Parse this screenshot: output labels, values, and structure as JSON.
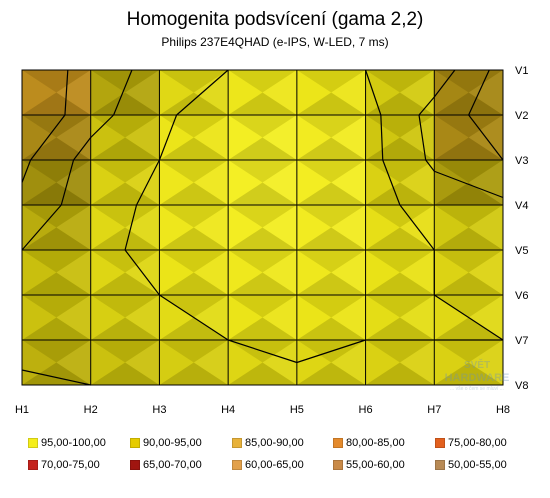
{
  "title": "Homogenita podsvícení (gama 2,2)",
  "subtitle": "Philips 237E4QHAD  (e-IPS, W-LED, 7 ms)",
  "chart_data": {
    "type": "heatmap",
    "x_labels": [
      "H1",
      "H2",
      "H3",
      "H4",
      "H5",
      "H6",
      "H7",
      "H8"
    ],
    "y_labels": [
      "V1",
      "V2",
      "V3",
      "V4",
      "V5",
      "V6",
      "V7",
      "V8"
    ],
    "values": [
      [
        81,
        87,
        92,
        95,
        95,
        95,
        93,
        83
      ],
      [
        80,
        88,
        94,
        98,
        98,
        97,
        88,
        82
      ],
      [
        84,
        92,
        95,
        98,
        99,
        97,
        89,
        85
      ],
      [
        86,
        93,
        96,
        98,
        99,
        97,
        93,
        91
      ],
      [
        90,
        94,
        96,
        97,
        98,
        97,
        95,
        93
      ],
      [
        91,
        93,
        95,
        96,
        97,
        96,
        95,
        94
      ],
      [
        92,
        93,
        94,
        95,
        96,
        95,
        95,
        95
      ],
      [
        89,
        90,
        92,
        93,
        94,
        93,
        93,
        93
      ]
    ],
    "legend": [
      {
        "label": "95,00-100,00",
        "color": "#f5ee1a"
      },
      {
        "label": "90,00-95,00",
        "color": "#e6cc00"
      },
      {
        "label": "85,00-90,00",
        "color": "#e8b23a"
      },
      {
        "label": "80,00-85,00",
        "color": "#e48a2c"
      },
      {
        "label": "75,00-80,00",
        "color": "#e2601e"
      },
      {
        "label": "70,00-75,00",
        "color": "#c4221c"
      },
      {
        "label": "65,00-70,00",
        "color": "#a01510"
      },
      {
        "label": "60,00-65,00",
        "color": "#e2a04a"
      },
      {
        "label": "55,00-60,00",
        "color": "#c98a48"
      },
      {
        "label": "50,00-55,00",
        "color": "#b88a55"
      }
    ]
  },
  "watermark": {
    "line1": "SVĚT",
    "line2": "HARDWARE",
    "tagline": "... vše o čem se mluví ..."
  }
}
